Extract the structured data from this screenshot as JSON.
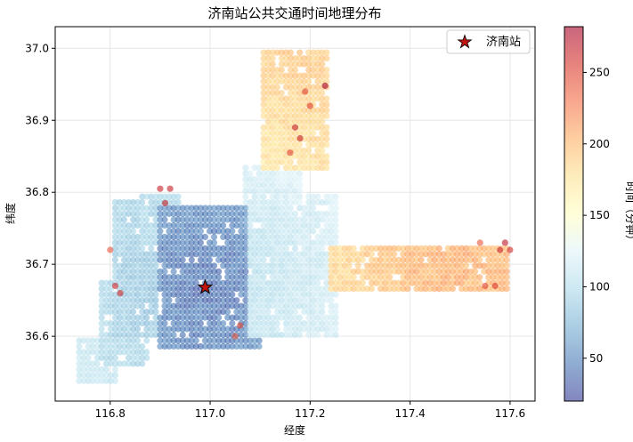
{
  "chart_data": {
    "type": "scatter",
    "title": "济南站公共交通时间地理分布",
    "xlabel": "经度",
    "ylabel": "纬度",
    "xlim": [
      116.69,
      117.65
    ],
    "ylim": [
      36.51,
      37.03
    ],
    "xticks": [
      "116.8",
      "117.0",
      "117.2",
      "117.4",
      "117.6"
    ],
    "xtick_values": [
      116.8,
      117.0,
      117.2,
      117.4,
      117.6
    ],
    "yticks": [
      "36.6",
      "36.7",
      "36.8",
      "36.9",
      "37.0"
    ],
    "ytick_values": [
      36.6,
      36.7,
      36.8,
      36.9,
      37.0
    ],
    "grid": true,
    "colormap": "RdYlBu_r",
    "colorbar": {
      "label": "时间（分钟）",
      "range": [
        20,
        282
      ],
      "ticks": [
        "50",
        "100",
        "150",
        "200",
        "250"
      ],
      "tick_values": [
        50,
        100,
        150,
        200,
        250
      ]
    },
    "legend": {
      "position": "top-right",
      "entries": [
        "济南站"
      ]
    },
    "station": {
      "name": "济南站",
      "lon": 116.99,
      "lat": 36.668,
      "color": "#c0150f"
    },
    "grid_step": {
      "lon": 0.009,
      "lat": 0.008
    },
    "regions": [
      {
        "lon": [
          116.73,
          116.81
        ],
        "lat": [
          36.535,
          36.6
        ],
        "v": [
          95,
          120
        ]
      },
      {
        "lon": [
          116.78,
          116.88
        ],
        "lat": [
          36.56,
          36.68
        ],
        "v": [
          80,
          115
        ]
      },
      {
        "lon": [
          116.81,
          116.92
        ],
        "lat": [
          36.6,
          36.79
        ],
        "v": [
          70,
          115
        ]
      },
      {
        "lon": [
          116.86,
          116.94
        ],
        "lat": [
          36.72,
          36.795
        ],
        "v": [
          75,
          120
        ]
      },
      {
        "lon": [
          116.9,
          117.1
        ],
        "lat": [
          36.58,
          36.78
        ],
        "v": [
          30,
          90
        ]
      },
      {
        "lon": [
          117.08,
          117.26
        ],
        "lat": [
          36.6,
          36.8
        ],
        "v": [
          90,
          135
        ]
      },
      {
        "lon": [
          117.07,
          117.18
        ],
        "lat": [
          36.78,
          36.84
        ],
        "v": [
          95,
          140
        ]
      },
      {
        "lon": [
          117.1,
          117.24
        ],
        "lat": [
          36.83,
          37.0
        ],
        "v": [
          145,
          200
        ]
      },
      {
        "lon": [
          117.24,
          117.6
        ],
        "lat": [
          36.66,
          36.73
        ],
        "v": [
          145,
          215
        ]
      }
    ],
    "hotspots": [
      {
        "lon": 116.9,
        "lat": 36.805,
        "v": 265
      },
      {
        "lon": 116.92,
        "lat": 36.805,
        "v": 265
      },
      {
        "lon": 116.91,
        "lat": 36.785,
        "v": 265
      },
      {
        "lon": 116.81,
        "lat": 36.67,
        "v": 265
      },
      {
        "lon": 116.82,
        "lat": 36.66,
        "v": 260
      },
      {
        "lon": 116.8,
        "lat": 36.72,
        "v": 240
      },
      {
        "lon": 117.06,
        "lat": 36.615,
        "v": 250
      },
      {
        "lon": 117.05,
        "lat": 36.6,
        "v": 240
      },
      {
        "lon": 117.23,
        "lat": 36.948,
        "v": 282
      },
      {
        "lon": 117.19,
        "lat": 36.94,
        "v": 250
      },
      {
        "lon": 117.17,
        "lat": 36.89,
        "v": 265
      },
      {
        "lon": 117.18,
        "lat": 36.875,
        "v": 265
      },
      {
        "lon": 117.16,
        "lat": 36.855,
        "v": 250
      },
      {
        "lon": 117.2,
        "lat": 36.92,
        "v": 250
      },
      {
        "lon": 117.59,
        "lat": 36.73,
        "v": 270
      },
      {
        "lon": 117.58,
        "lat": 36.72,
        "v": 265
      },
      {
        "lon": 117.6,
        "lat": 36.72,
        "v": 260
      },
      {
        "lon": 117.57,
        "lat": 36.67,
        "v": 255
      },
      {
        "lon": 117.55,
        "lat": 36.67,
        "v": 250
      },
      {
        "lon": 117.54,
        "lat": 36.73,
        "v": 240
      }
    ]
  }
}
